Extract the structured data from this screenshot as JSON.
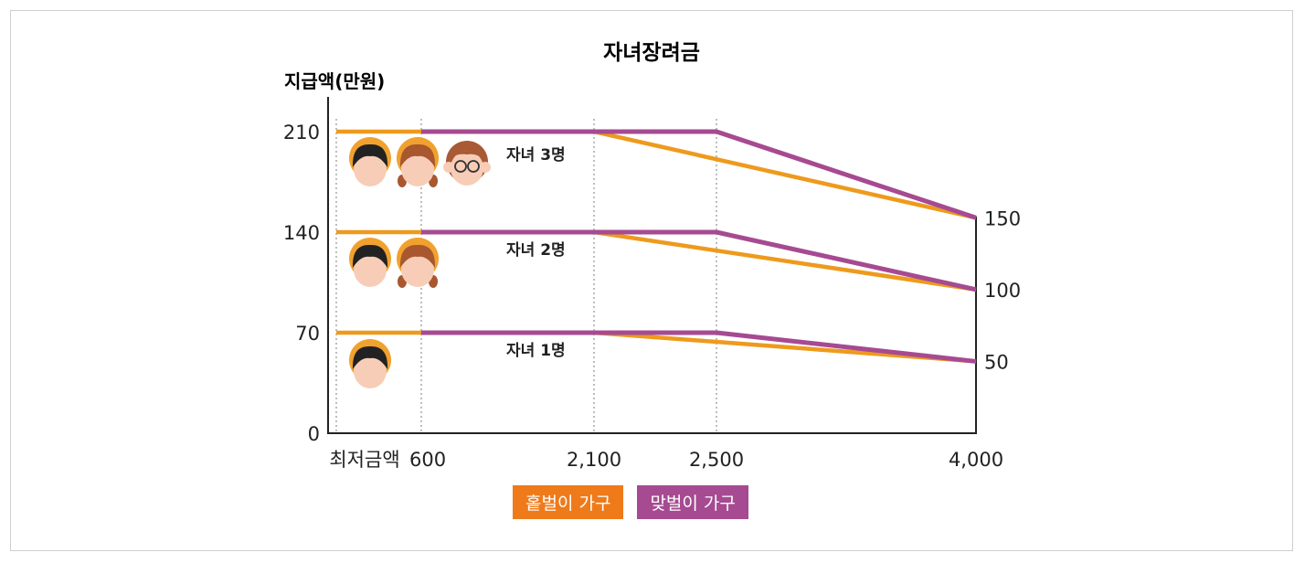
{
  "chart_data": {
    "type": "line",
    "title": "자녀장려금",
    "ylabel": "지급액(만원)",
    "xlabel": "",
    "x_ticks": [
      "최저금액",
      "600",
      "2,100",
      "2,500",
      "4,000"
    ],
    "y_ticks": [
      "0",
      "70",
      "140",
      "210"
    ],
    "right_y_ticks": [
      "150",
      "100",
      "50"
    ],
    "ylim": [
      0,
      210
    ],
    "colors": {
      "single": "#EE9A1D",
      "dual": "#A64A92"
    },
    "legend": [
      {
        "key": "single",
        "label": "홑벌이 가구",
        "color": "#EF7A1A"
      },
      {
        "key": "dual",
        "label": "맞벌이 가구",
        "color": "#A64A92"
      }
    ],
    "groups": [
      {
        "label": "자녀 3명",
        "icons": [
          "boy-face-icon",
          "girl-face-icon",
          "glasses-kid-face-icon"
        ],
        "series": [
          {
            "household": "single",
            "x": [
              "최저금액",
              "2,100",
              "4,000"
            ],
            "y": [
              210,
              210,
              150
            ]
          },
          {
            "household": "dual",
            "x": [
              "600",
              "2,500",
              "4,000"
            ],
            "y": [
              210,
              210,
              150
            ]
          }
        ]
      },
      {
        "label": "자녀 2명",
        "icons": [
          "boy-face-icon",
          "girl-face-icon"
        ],
        "series": [
          {
            "household": "single",
            "x": [
              "최저금액",
              "2,100",
              "4,000"
            ],
            "y": [
              140,
              140,
              100
            ]
          },
          {
            "household": "dual",
            "x": [
              "600",
              "2,500",
              "4,000"
            ],
            "y": [
              140,
              140,
              100
            ]
          }
        ]
      },
      {
        "label": "자녀 1명",
        "icons": [
          "boy-face-icon"
        ],
        "series": [
          {
            "household": "single",
            "x": [
              "최저금액",
              "2,100",
              "4,000"
            ],
            "y": [
              70,
              70,
              50
            ]
          },
          {
            "household": "dual",
            "x": [
              "600",
              "2,500",
              "4,000"
            ],
            "y": [
              70,
              70,
              50
            ]
          }
        ]
      }
    ]
  }
}
